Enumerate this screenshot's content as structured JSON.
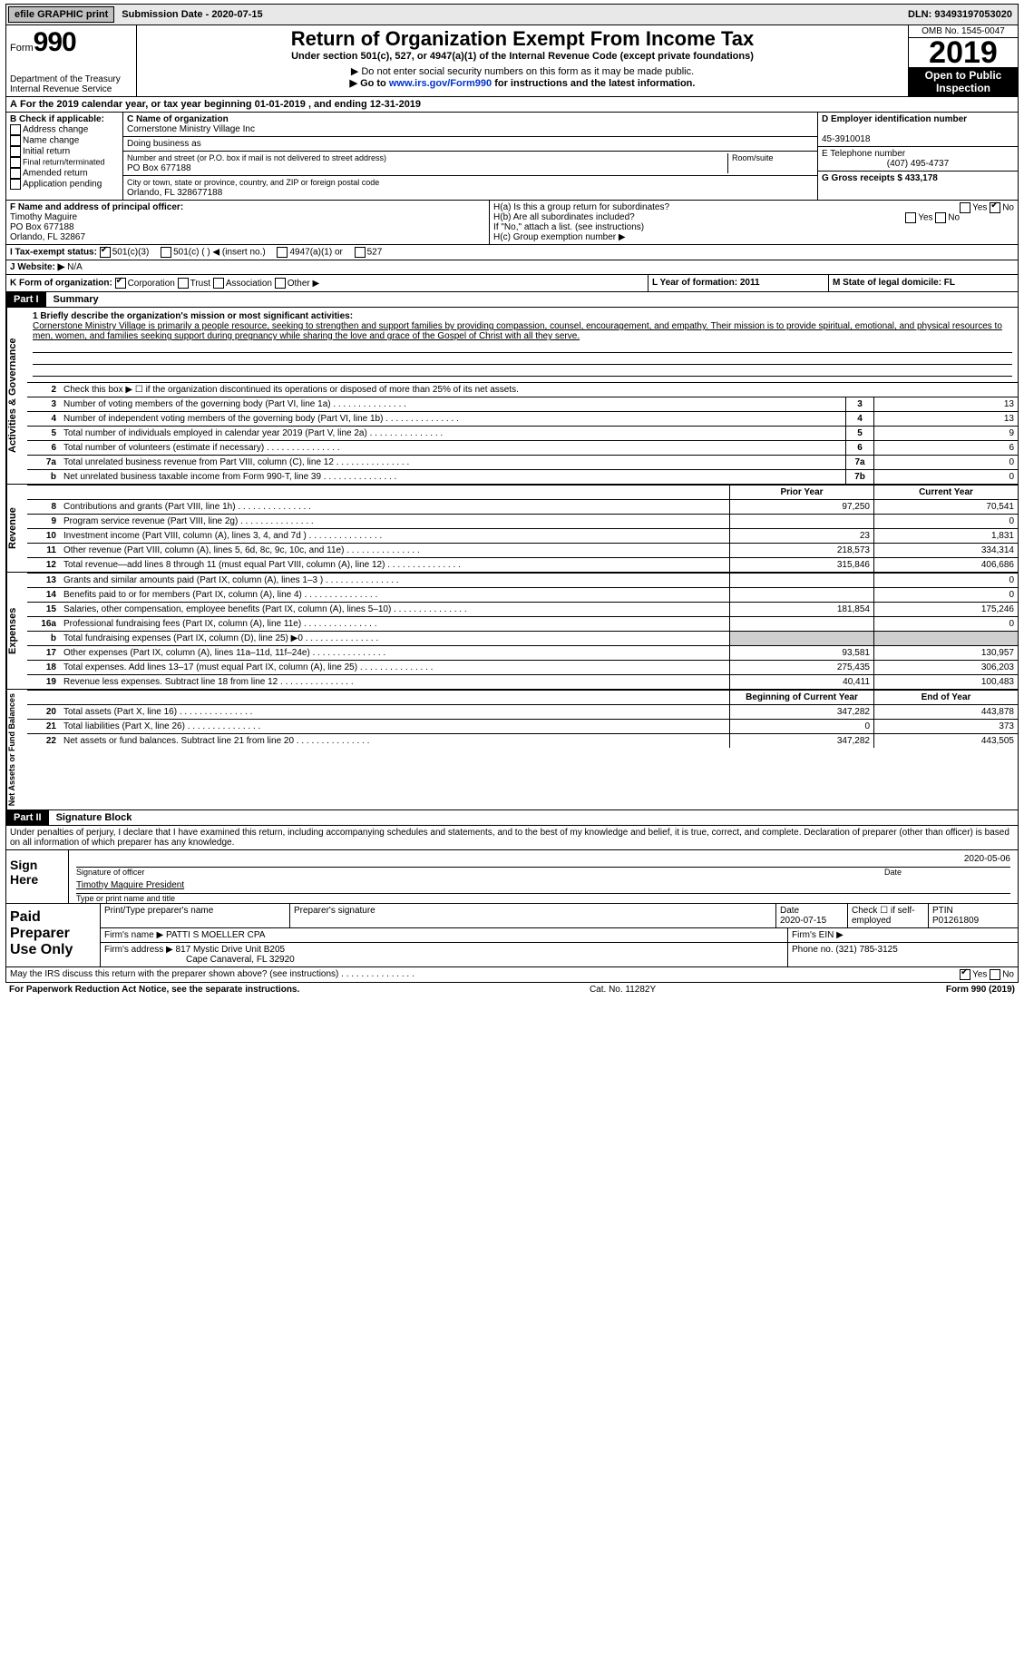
{
  "topbar": {
    "efile": "efile GRAPHIC print",
    "sub": "Submission Date - 2020-07-15",
    "dln": "DLN: 93493197053020"
  },
  "hdr": {
    "form": "Form",
    "num": "990",
    "dept": "Department of the Treasury",
    "irs": "Internal Revenue Service",
    "title": "Return of Organization Exempt From Income Tax",
    "sub1": "Under section 501(c), 527, or 4947(a)(1) of the Internal Revenue Code (except private foundations)",
    "sub2": "▶ Do not enter social security numbers on this form as it may be made public.",
    "sub3_a": "▶ Go to ",
    "sub3_link": "www.irs.gov/Form990",
    "sub3_b": " for instructions and the latest information.",
    "omb": "OMB No. 1545-0047",
    "year": "2019",
    "open": "Open to Public Inspection"
  },
  "cal": {
    "a": "A",
    "txt": "For the 2019 calendar year, or tax year beginning 01-01-2019   , and ending 12-31-2019"
  },
  "B": {
    "title": "B Check if applicable:",
    "items": [
      "Address change",
      "Name change",
      "Initial return",
      "Final return/terminated",
      "Amended return",
      "Application pending"
    ]
  },
  "C": {
    "label": "C Name of organization",
    "name": "Cornerstone Ministry Village Inc",
    "dba": "Doing business as",
    "addr_l": "Number and street (or P.O. box if mail is not delivered to street address)",
    "room": "Room/suite",
    "addr": "PO Box 677188",
    "city_l": "City or town, state or province, country, and ZIP or foreign postal code",
    "city": "Orlando, FL  328677188"
  },
  "D": {
    "label": "D Employer identification number",
    "val": "45-3910018",
    "tel_l": "E Telephone number",
    "tel": "(407) 495-4737",
    "g": "G Gross receipts $ 433,178"
  },
  "F": {
    "label": "F  Name and address of principal officer:",
    "name": "Timothy Maguire",
    "a1": "PO Box 677188",
    "a2": "Orlando, FL  32867"
  },
  "H": {
    "a": "H(a)  Is this a group return for subordinates?",
    "b": "H(b)  Are all subordinates included?",
    "note": "If \"No,\" attach a list. (see instructions)",
    "c": "H(c)  Group exemption number ▶",
    "yes": "Yes",
    "no": "No"
  },
  "I": {
    "label": "I  Tax-exempt status:",
    "opts": [
      "501(c)(3)",
      "501(c) (  ) ◀ (insert no.)",
      "4947(a)(1) or",
      "527"
    ],
    "checked": 0
  },
  "J": {
    "label": "J  Website: ▶",
    "val": "N/A"
  },
  "K": {
    "label": "K Form of organization:",
    "opts": [
      "Corporation",
      "Trust",
      "Association",
      "Other ▶"
    ],
    "checked": 0,
    "L": "L Year of formation: 2011",
    "M": "M State of legal domicile: FL"
  },
  "parts": {
    "p1": "Part I",
    "p1t": "Summary",
    "p2": "Part II",
    "p2t": "Signature Block"
  },
  "vtabs": {
    "a": "Activities & Governance",
    "r": "Revenue",
    "e": "Expenses",
    "n": "Net Assets or Fund Balances"
  },
  "s1": {
    "q1_l": "1  Briefly describe the organization's mission or most significant activities:",
    "q1": "Cornerstone Ministry Village is primarily a people resource, seeking to strengthen and support families by providing compassion, counsel, encouragement, and empathy. Their mission is to provide spiritual, emotional, and physical resources to men, women, and families seeking support during pregnancy while sharing the love and grace of the Gospel of Christ with all they serve.",
    "q2": "Check this box ▶ ☐  if the organization discontinued its operations or disposed of more than 25% of its net assets.",
    "rows_g": [
      {
        "n": "3",
        "t": "Number of voting members of the governing body (Part VI, line 1a)",
        "b": "3",
        "v": "13"
      },
      {
        "n": "4",
        "t": "Number of independent voting members of the governing body (Part VI, line 1b)",
        "b": "4",
        "v": "13"
      },
      {
        "n": "5",
        "t": "Total number of individuals employed in calendar year 2019 (Part V, line 2a)",
        "b": "5",
        "v": "9"
      },
      {
        "n": "6",
        "t": "Total number of volunteers (estimate if necessary)",
        "b": "6",
        "v": "6"
      },
      {
        "n": "7a",
        "t": "Total unrelated business revenue from Part VIII, column (C), line 12",
        "b": "7a",
        "v": "0"
      },
      {
        "n": "b",
        "t": "Net unrelated business taxable income from Form 990-T, line 39",
        "b": "7b",
        "v": "0"
      }
    ],
    "col_py": "Prior Year",
    "col_cy": "Current Year",
    "col_by": "Beginning of Current Year",
    "col_ey": "End of Year",
    "rev": [
      {
        "n": "8",
        "t": "Contributions and grants (Part VIII, line 1h)",
        "p": "97,250",
        "c": "70,541"
      },
      {
        "n": "9",
        "t": "Program service revenue (Part VIII, line 2g)",
        "p": "",
        "c": "0"
      },
      {
        "n": "10",
        "t": "Investment income (Part VIII, column (A), lines 3, 4, and 7d )",
        "p": "23",
        "c": "1,831"
      },
      {
        "n": "11",
        "t": "Other revenue (Part VIII, column (A), lines 5, 6d, 8c, 9c, 10c, and 11e)",
        "p": "218,573",
        "c": "334,314"
      },
      {
        "n": "12",
        "t": "Total revenue—add lines 8 through 11 (must equal Part VIII, column (A), line 12)",
        "p": "315,846",
        "c": "406,686"
      }
    ],
    "exp": [
      {
        "n": "13",
        "t": "Grants and similar amounts paid (Part IX, column (A), lines 1–3 )",
        "p": "",
        "c": "0"
      },
      {
        "n": "14",
        "t": "Benefits paid to or for members (Part IX, column (A), line 4)",
        "p": "",
        "c": "0"
      },
      {
        "n": "15",
        "t": "Salaries, other compensation, employee benefits (Part IX, column (A), lines 5–10)",
        "p": "181,854",
        "c": "175,246"
      },
      {
        "n": "16a",
        "t": "Professional fundraising fees (Part IX, column (A), line 11e)",
        "p": "",
        "c": "0"
      },
      {
        "n": "b",
        "t": "Total fundraising expenses (Part IX, column (D), line 25) ▶0",
        "p": "grey",
        "c": "grey"
      },
      {
        "n": "17",
        "t": "Other expenses (Part IX, column (A), lines 11a–11d, 11f–24e)",
        "p": "93,581",
        "c": "130,957"
      },
      {
        "n": "18",
        "t": "Total expenses. Add lines 13–17 (must equal Part IX, column (A), line 25)",
        "p": "275,435",
        "c": "306,203"
      },
      {
        "n": "19",
        "t": "Revenue less expenses. Subtract line 18 from line 12",
        "p": "40,411",
        "c": "100,483"
      }
    ],
    "net": [
      {
        "n": "20",
        "t": "Total assets (Part X, line 16)",
        "p": "347,282",
        "c": "443,878"
      },
      {
        "n": "21",
        "t": "Total liabilities (Part X, line 26)",
        "p": "0",
        "c": "373"
      },
      {
        "n": "22",
        "t": "Net assets or fund balances. Subtract line 21 from line 20",
        "p": "347,282",
        "c": "443,505"
      }
    ]
  },
  "perjury": "Under penalties of perjury, I declare that I have examined this return, including accompanying schedules and statements, and to the best of my knowledge and belief, it is true, correct, and complete. Declaration of preparer (other than officer) is based on all information of which preparer has any knowledge.",
  "sign": {
    "l": "Sign Here",
    "date": "2020-05-06",
    "sig_l": "Signature of officer",
    "dt_l": "Date",
    "name": "Timothy Maguire  President",
    "name_l": "Type or print name and title"
  },
  "prep": {
    "l": "Paid Preparer Use Only",
    "h": [
      "Print/Type preparer's name",
      "Preparer's signature",
      "Date",
      "",
      "PTIN"
    ],
    "date": "2020-07-15",
    "selfemp": "Check ☐ if self-employed",
    "ptin": "P01261809",
    "firm_l": "Firm's name   ▶",
    "firm": "PATTI S MOELLER CPA",
    "ein_l": "Firm's EIN ▶",
    "addr_l": "Firm's address ▶",
    "addr1": "817 Mystic Drive Unit B205",
    "addr2": "Cape Canaveral, FL  32920",
    "phone_l": "Phone no. (321) 785-3125"
  },
  "bottom": {
    "q": "May the IRS discuss this return with the preparer shown above? (see instructions)",
    "y": "Yes",
    "n": "No"
  },
  "ftr": {
    "l": "For Paperwork Reduction Act Notice, see the separate instructions.",
    "m": "Cat. No. 11282Y",
    "r": "Form 990 (2019)"
  }
}
